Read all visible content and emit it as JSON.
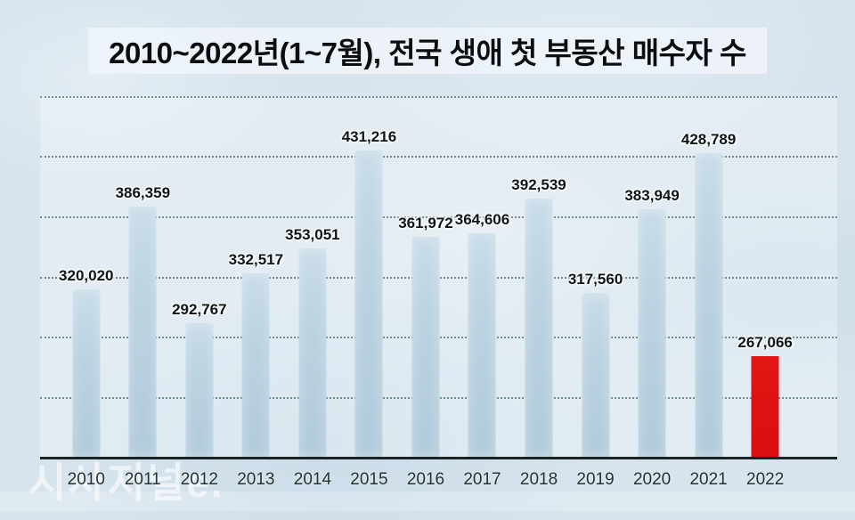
{
  "title": "2010~2022년(1~7월), 전국 생애 첫 부동산 매수자 수",
  "watermark": "시사저널e.",
  "colors": {
    "background": "#d7e4ee",
    "bar": "#bcd3e1",
    "highlight_bar": "#dc1111",
    "gridline": "#2d524e",
    "axis": "#1b2324",
    "value_text": "#0e1516",
    "year_text": "#233231"
  },
  "chart_data": {
    "type": "bar",
    "title": "2010~2022년(1~7월), 전국 생애 첫 부동산 매수자 수",
    "categories": [
      "2010",
      "2011",
      "2012",
      "2013",
      "2014",
      "2015",
      "2016",
      "2017",
      "2018",
      "2019",
      "2020",
      "2021",
      "2022"
    ],
    "values": [
      320020,
      386359,
      292767,
      332517,
      353051,
      431216,
      361972,
      364606,
      392539,
      317560,
      383949,
      428789,
      267066
    ],
    "value_labels": [
      "320,020",
      "386,359",
      "292,767",
      "332,517",
      "353,051",
      "431,216",
      "361,972",
      "364,606",
      "392,539",
      "317,560",
      "383,949",
      "428,789",
      "267,066"
    ],
    "highlight_index": 12,
    "highlight_category": "2022",
    "xlabel": "",
    "ylabel": "",
    "legend": "none",
    "grid": "horizontal-dotted",
    "gridline_count": 6,
    "axis_baseline_value": 186500,
    "value_span_full_height": 287700
  }
}
